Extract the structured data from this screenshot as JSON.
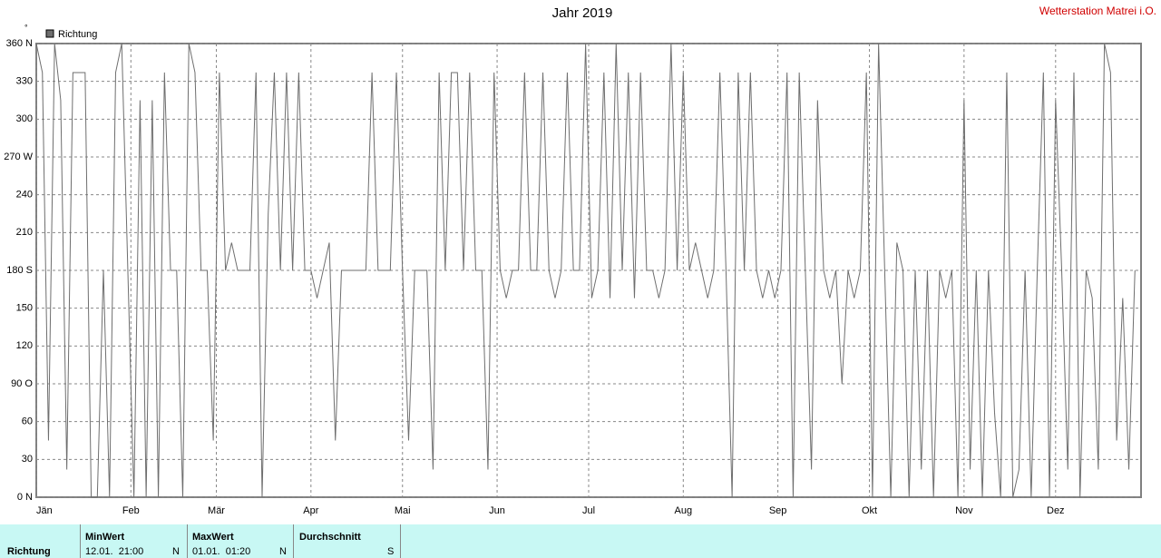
{
  "chart_data": {
    "type": "line",
    "title": "Jahr 2019",
    "station": "Wetterstation Matrei i.O.",
    "unit_mark": "°",
    "x": [
      0,
      2,
      4,
      6,
      8,
      10,
      12,
      14,
      16,
      18,
      20,
      22,
      24,
      26,
      28,
      30,
      32,
      34,
      36,
      38,
      40,
      42,
      44,
      46,
      48,
      50,
      52,
      54,
      56,
      58,
      60,
      62,
      64,
      66,
      68,
      70,
      72,
      74,
      76,
      78,
      80,
      82,
      84,
      86,
      88,
      90,
      92,
      94,
      96,
      98,
      100,
      102,
      104,
      106,
      108,
      110,
      112,
      114,
      116,
      118,
      120,
      122,
      124,
      126,
      128,
      130,
      132,
      134,
      136,
      138,
      140,
      142,
      144,
      146,
      148,
      150,
      152,
      154,
      156,
      158,
      160,
      162,
      164,
      166,
      168,
      170,
      172,
      174,
      176,
      178,
      180,
      182,
      184,
      186,
      188,
      190,
      192,
      194,
      196,
      198,
      200,
      202,
      204,
      206,
      208,
      210,
      212,
      214,
      216,
      218,
      220,
      222,
      224,
      226,
      228,
      230,
      232,
      234,
      236,
      238,
      240,
      242,
      244,
      246,
      248,
      250,
      252,
      254,
      256,
      258,
      260,
      262,
      264,
      266,
      268,
      270,
      272,
      274,
      276,
      278,
      280,
      282,
      284,
      286,
      288,
      290,
      292,
      294,
      296,
      298,
      300,
      302,
      304,
      306,
      308,
      310,
      312,
      314,
      316,
      318,
      320,
      322,
      324,
      326,
      328,
      330,
      332,
      334,
      336,
      338,
      340,
      342,
      344,
      346,
      348,
      350,
      352,
      354,
      356,
      358,
      360
    ],
    "series": [
      {
        "name": "Richtung",
        "color": "#6e6e6e",
        "values": [
          360,
          337,
          45,
          360,
          315,
          22,
          337,
          337,
          337,
          0,
          0,
          180,
          0,
          337,
          360,
          180,
          0,
          315,
          0,
          315,
          0,
          337,
          180,
          180,
          0,
          360,
          337,
          180,
          180,
          45,
          337,
          180,
          202,
          180,
          180,
          180,
          337,
          0,
          225,
          337,
          180,
          337,
          180,
          337,
          180,
          180,
          158,
          180,
          202,
          45,
          180,
          180,
          180,
          180,
          180,
          337,
          180,
          180,
          180,
          337,
          180,
          45,
          180,
          180,
          180,
          22,
          337,
          180,
          337,
          337,
          180,
          337,
          180,
          180,
          22,
          337,
          180,
          158,
          180,
          180,
          337,
          180,
          180,
          337,
          180,
          158,
          180,
          337,
          180,
          180,
          360,
          158,
          180,
          337,
          158,
          360,
          180,
          337,
          158,
          337,
          180,
          180,
          158,
          180,
          360,
          180,
          337,
          180,
          202,
          180,
          158,
          180,
          337,
          180,
          0,
          337,
          180,
          337,
          180,
          158,
          180,
          158,
          180,
          337,
          0,
          337,
          180,
          22,
          315,
          180,
          158,
          180,
          90,
          180,
          158,
          180,
          337,
          0,
          360,
          180,
          0,
          202,
          180,
          0,
          180,
          22,
          180,
          0,
          180,
          158,
          180,
          0,
          315,
          22,
          180,
          0,
          180,
          67,
          0,
          337,
          0,
          22,
          180,
          0,
          180,
          337,
          0,
          315,
          180,
          22,
          337,
          0,
          180,
          158,
          22,
          360,
          337,
          45,
          158,
          22,
          180
        ]
      }
    ],
    "xlim": [
      0,
      362
    ],
    "xticks": [
      {
        "value": 0,
        "label": "Jän"
      },
      {
        "value": 31,
        "label": "Feb"
      },
      {
        "value": 59,
        "label": "Mär"
      },
      {
        "value": 90,
        "label": "Apr"
      },
      {
        "value": 120,
        "label": "Mai"
      },
      {
        "value": 151,
        "label": "Jun"
      },
      {
        "value": 181,
        "label": "Jul"
      },
      {
        "value": 212,
        "label": "Aug"
      },
      {
        "value": 243,
        "label": "Sep"
      },
      {
        "value": 273,
        "label": "Okt"
      },
      {
        "value": 304,
        "label": "Nov"
      },
      {
        "value": 334,
        "label": "Dez"
      }
    ],
    "ylim": [
      0,
      360
    ],
    "yticks": [
      {
        "value": 0,
        "label": "0 N"
      },
      30,
      60,
      {
        "value": 90,
        "label": "90 O"
      },
      120,
      150,
      {
        "value": 180,
        "label": "180 S"
      },
      210,
      240,
      {
        "value": 270,
        "label": "270 W"
      },
      300,
      330,
      {
        "value": 360,
        "label": "360 N"
      }
    ],
    "grid": true,
    "legend": "top-left",
    "table": {
      "header": [
        "MinWert",
        "MaxWert",
        "Durchschnitt"
      ],
      "row_label": "Richtung",
      "min": {
        "time": "12.01.  21:00",
        "dir": "N"
      },
      "max": {
        "time": "01.01.  01:20",
        "dir": "N"
      },
      "avg": {
        "dir": "S"
      }
    }
  }
}
